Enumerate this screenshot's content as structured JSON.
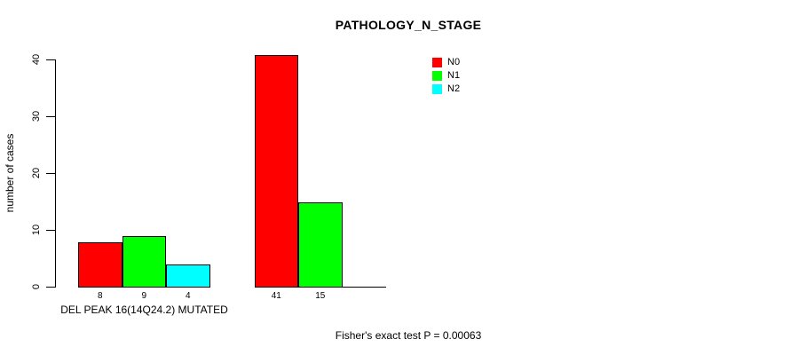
{
  "chart_data": {
    "type": "bar",
    "title": "PATHOLOGY_N_STAGE",
    "ylabel": "number of cases",
    "xlabel": "",
    "yticks": [
      0,
      10,
      20,
      30,
      40
    ],
    "ylim": [
      0,
      41
    ],
    "grid": false,
    "background": "#ffffff",
    "axis_color": "#000000",
    "series_names": [
      "N0",
      "N1",
      "N2"
    ],
    "colors": [
      "#ff0000",
      "#00ff00",
      "#00ffff"
    ],
    "categories": [
      "DEL PEAK 16(14Q24.2) MUTATED",
      ""
    ],
    "groups": [
      {
        "label": "DEL PEAK 16(14Q24.2) MUTATED",
        "values": [
          8,
          9,
          4
        ],
        "value_labels": [
          "8",
          "9",
          "4"
        ]
      },
      {
        "label": "",
        "values": [
          41,
          15,
          0
        ],
        "value_labels": [
          "41",
          "15",
          ""
        ]
      }
    ],
    "legend": {
      "position": "top-right",
      "entries": [
        {
          "label": "N0",
          "color": "#ff0000"
        },
        {
          "label": "N1",
          "color": "#00ff00"
        },
        {
          "label": "N2",
          "color": "#00ffff"
        }
      ]
    },
    "annotation": "Fisher's exact test P = 0.00063"
  }
}
